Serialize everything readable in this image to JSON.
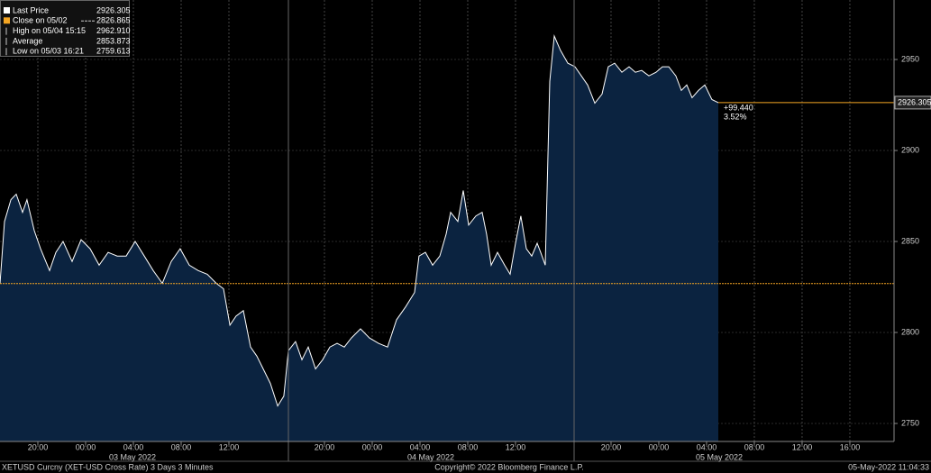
{
  "chart_data": {
    "type": "line",
    "x": [
      16.83,
      17.21,
      17.74,
      18.19,
      18.72,
      19.09,
      19.7,
      20.23,
      20.98,
      21.51,
      22.11,
      22.87,
      23.62,
      24.38,
      25.13,
      25.89,
      26.64,
      27.4,
      28.15,
      28.91,
      29.66,
      30.42,
      31.17,
      31.92,
      32.68,
      33.43,
      34.19,
      34.94,
      35.55,
      36.08,
      36.6,
      37.21,
      37.81,
      38.34,
      38.87,
      39.47,
      40.08,
      40.6,
      40.98,
      41.58,
      42.11,
      42.64,
      43.25,
      43.85,
      44.45,
      45.06,
      45.66,
      46.26,
      47.02,
      47.77,
      48.53,
      49.28,
      50.04,
      50.79,
      51.55,
      51.92,
      52.45,
      53.06,
      53.66,
      54.19,
      54.57,
      55.17,
      55.62,
      56.08,
      56.68,
      57.21,
      57.58,
      57.96,
      58.49,
      59.09,
      59.55,
      60,
      60.45,
      60.91,
      61.36,
      61.81,
      62.11,
      62.49,
      62.87,
      63.25,
      63.77,
      64.38,
      64.98,
      65.51,
      66.04,
      66.64,
      67.25,
      67.77,
      68.3,
      68.91,
      69.51,
      70.04,
      70.57,
      71.17,
      71.77,
      72.3,
      72.83,
      73.43,
      73.89,
      74.34,
      74.79,
      75.32,
      75.85,
      76.45,
      76.98
    ],
    "series": [
      {
        "name": "Last Price",
        "color": "#ffffff",
        "fill": "#0b2340",
        "values": [
          2826.8,
          2861,
          2873,
          2876,
          2866,
          2873,
          2856,
          2846,
          2834,
          2844,
          2850,
          2839,
          2851,
          2846,
          2837,
          2844,
          2842,
          2842,
          2850,
          2842,
          2834,
          2827,
          2839,
          2846,
          2837,
          2834,
          2832,
          2827,
          2824,
          2804,
          2809,
          2812,
          2792,
          2787,
          2780,
          2772,
          2759.6,
          2765,
          2790,
          2795,
          2785,
          2792,
          2780,
          2785,
          2792,
          2794,
          2792,
          2797,
          2802,
          2797,
          2794,
          2792,
          2807,
          2814,
          2822,
          2842,
          2844,
          2837,
          2842,
          2854,
          2866,
          2861,
          2878,
          2859,
          2864,
          2866,
          2854,
          2837,
          2844,
          2837,
          2832,
          2849,
          2864,
          2846,
          2842,
          2849,
          2844,
          2837,
          2938,
          2962.9,
          2955,
          2948,
          2946,
          2941,
          2936,
          2926,
          2931,
          2946,
          2948,
          2943,
          2946,
          2943,
          2944,
          2941,
          2943,
          2946,
          2946,
          2941,
          2933,
          2936,
          2929,
          2933,
          2936,
          2928,
          2926.305
        ]
      }
    ],
    "reference_line": {
      "value": 2826.865,
      "color": "#f5a623"
    },
    "last_value": 2926.305,
    "change": {
      "absolute": "+99.440",
      "percent": "3.52%",
      "color": "#f5a623"
    },
    "xlim": [
      16.83,
      91.7
    ],
    "xticks": [
      {
        "value": 20,
        "label": "20:00"
      },
      {
        "value": 24,
        "label": "00:00"
      },
      {
        "value": 28,
        "label": "04:00"
      },
      {
        "value": 32,
        "label": "08:00"
      },
      {
        "value": 36,
        "label": "12:00"
      },
      {
        "value": 44,
        "label": "20:00"
      },
      {
        "value": 48,
        "label": "00:00"
      },
      {
        "value": 52,
        "label": "04:00"
      },
      {
        "value": 56,
        "label": "08:00"
      },
      {
        "value": 60,
        "label": "12:00"
      },
      {
        "value": 68,
        "label": "20:00"
      },
      {
        "value": 72,
        "label": "00:00"
      },
      {
        "value": 76,
        "label": "04:00"
      },
      {
        "value": 80,
        "label": "08:00"
      },
      {
        "value": 84,
        "label": "12:00"
      },
      {
        "value": 88,
        "label": "16:00"
      }
    ],
    "day_labels": [
      "03 May 2022",
      "04 May 2022",
      "05 May 2022"
    ],
    "ylim": [
      2740.1,
      2982.7
    ],
    "yticks": [
      2750,
      2800,
      2850,
      2900,
      2950
    ],
    "grid": true,
    "legend": [
      {
        "label": "Last Price",
        "value": 2926.305
      },
      {
        "label": "Close on 05/02",
        "value": 2826.865
      },
      {
        "label": "High on 05/04 15:15",
        "value": 2962.91,
        "value_label": "2962.910"
      },
      {
        "label": "Average",
        "value": 2853.873
      },
      {
        "label": "Low on 05/03 16:21",
        "value": 2759.613
      }
    ],
    "footer": {
      "left": "XETUSD Curcny (XET-USD Cross Rate) 3 Days 3 Minutes",
      "center": "Copyright© 2022 Bloomberg Finance L.P.",
      "right": "05-May-2022 11:04:33"
    }
  }
}
